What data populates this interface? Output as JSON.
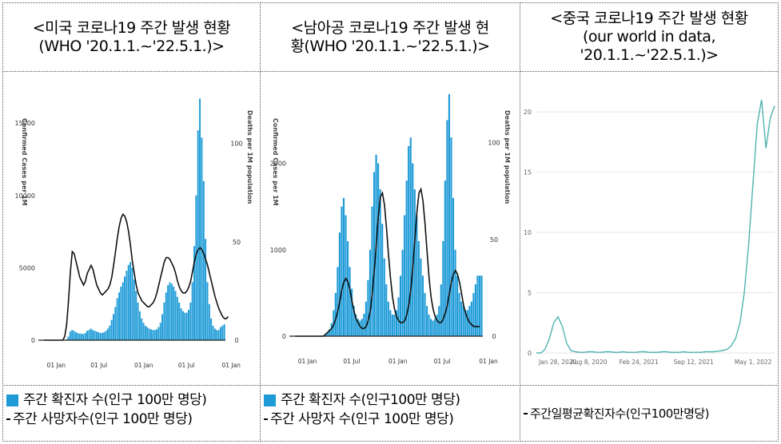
{
  "headers": [
    {
      "line1": "<미국 코로나19 주간 발생 현황",
      "line2": "(WHO '20.1.1.~'22.5.1.)>"
    },
    {
      "line1": "<남아공 코로나19 주간 발생 현",
      "line2": "황(WHO '20.1.1.~'22.5.1.)>"
    },
    {
      "line1": "<중국 코로나19 주간 발생 현황",
      "line2": "(our world in data, '20.1.1.~'22.5.1.)>"
    }
  ],
  "legends": {
    "usa": {
      "bar": "주간 확진자 수(인구 100만 명당)",
      "line": "주간 사망자수(인구 100만 명당)"
    },
    "rsa": {
      "bar": "주간 확진자 수(인구100만 명당)",
      "line": "주간 사망자 수(인구 100만 명당)"
    },
    "china": {
      "line": "주간일평균확진자수(인구100만명당)"
    }
  },
  "colors": {
    "bar": "#1e9bd7",
    "line": "#111111",
    "china_line": "#4fb3b0"
  },
  "chart_data": [
    {
      "type": "bar",
      "title": "미국 코로나19 주간 발생 현황",
      "ylabel": "Confirmed Cases per 1M",
      "y2label": "Deaths per 1M population",
      "x_tick_labels": [
        "01 Jan",
        "01 Jul",
        "01 Jan",
        "01 Jul",
        "01 Jan"
      ],
      "y_ticks": [
        0,
        5000,
        10000,
        15000
      ],
      "y2_ticks": [
        0,
        50,
        100
      ],
      "ylim": [
        0,
        17000
      ],
      "y2lim": [
        0,
        125
      ],
      "series": [
        {
          "kind": "bar",
          "values": [
            0,
            0,
            0,
            0,
            0,
            0,
            0,
            0,
            0,
            0,
            0,
            10,
            50,
            250,
            600,
            700,
            650,
            550,
            500,
            450,
            450,
            420,
            500,
            650,
            700,
            800,
            700,
            650,
            600,
            550,
            500,
            500,
            550,
            650,
            800,
            1000,
            1400,
            1800,
            2300,
            2900,
            3300,
            3700,
            4000,
            4400,
            4800,
            5200,
            5400,
            5000,
            4200,
            3400,
            2600,
            2000,
            1500,
            1200,
            1000,
            900,
            800,
            750,
            700,
            700,
            750,
            900,
            1200,
            1800,
            2600,
            3300,
            3800,
            4000,
            3900,
            3700,
            3400,
            3000,
            2600,
            2200,
            2000,
            1900,
            1900,
            2100,
            2600,
            4000,
            6500,
            10000,
            14500,
            16700,
            14000,
            11000,
            7000,
            4000,
            2500,
            1500,
            1000,
            800,
            700,
            700,
            900,
            1000,
            1100
          ]
        },
        {
          "kind": "line",
          "values": [
            0,
            0,
            0,
            0,
            0,
            0,
            0,
            0,
            0,
            0,
            0,
            2,
            8,
            20,
            35,
            45,
            44,
            40,
            36,
            32,
            30,
            28,
            30,
            34,
            36,
            38,
            36,
            32,
            28,
            26,
            24,
            23,
            24,
            25,
            26,
            28,
            32,
            38,
            45,
            52,
            58,
            62,
            64,
            63,
            60,
            55,
            48,
            40,
            34,
            28,
            24,
            22,
            20,
            19,
            18,
            17,
            17,
            18,
            19,
            21,
            24,
            28,
            32,
            36,
            40,
            42,
            42,
            41,
            39,
            37,
            34,
            30,
            27,
            25,
            24,
            24,
            25,
            27,
            30,
            35,
            40,
            44,
            46,
            47,
            46,
            44,
            41,
            38,
            34,
            30,
            26,
            22,
            19,
            16,
            14,
            12,
            11,
            11,
            12
          ]
        }
      ]
    },
    {
      "type": "bar",
      "title": "남아공 코로나19 주간 발생 현황",
      "ylabel": "Confirmed Cases per 1M",
      "y2label": "Deaths per 1M population",
      "x_tick_labels": [
        "01 Jan",
        "01 Jul",
        "01 Jan",
        "01 Jul",
        "01 Jan"
      ],
      "y_ticks": [
        0,
        1000,
        2000
      ],
      "y2_ticks": [
        0,
        50,
        100
      ],
      "ylim": [
        0,
        2800
      ],
      "y2lim": [
        0,
        125
      ],
      "series": [
        {
          "kind": "bar",
          "values": [
            0,
            0,
            0,
            0,
            0,
            0,
            0,
            0,
            0,
            0,
            0,
            0,
            0,
            5,
            10,
            20,
            40,
            80,
            150,
            300,
            500,
            800,
            1200,
            1500,
            1600,
            1400,
            1100,
            800,
            550,
            350,
            250,
            200,
            180,
            200,
            260,
            400,
            650,
            1000,
            1500,
            1900,
            2100,
            2000,
            1700,
            1300,
            900,
            600,
            400,
            300,
            250,
            250,
            300,
            450,
            700,
            1000,
            1400,
            1800,
            2200,
            2300,
            2000,
            1700,
            1400,
            1100,
            900,
            700,
            500,
            350,
            250,
            200,
            180,
            200,
            250,
            350,
            600,
            1100,
            1800,
            2500,
            2800,
            2300,
            1600,
            1000,
            700,
            500,
            400,
            350,
            300,
            300,
            350,
            400,
            500,
            600,
            700,
            700,
            700
          ]
        },
        {
          "kind": "line",
          "values": [
            0,
            0,
            0,
            0,
            0,
            0,
            0,
            0,
            0,
            0,
            0,
            0,
            0,
            0,
            0,
            1,
            2,
            3,
            4,
            6,
            9,
            13,
            18,
            24,
            28,
            30,
            28,
            24,
            18,
            13,
            9,
            7,
            5,
            4,
            4,
            5,
            8,
            13,
            22,
            34,
            48,
            62,
            72,
            74,
            68,
            56,
            42,
            30,
            20,
            14,
            10,
            8,
            7,
            7,
            8,
            11,
            16,
            24,
            36,
            50,
            64,
            74,
            76,
            70,
            58,
            44,
            30,
            20,
            14,
            10,
            8,
            7,
            7,
            9,
            12,
            16,
            22,
            28,
            32,
            34,
            32,
            28,
            22,
            16,
            12,
            9,
            7,
            6,
            5,
            5,
            5,
            5
          ]
        }
      ]
    },
    {
      "type": "line",
      "title": "중국 코로나19 주간 발생 현황",
      "x_tick_labels": [
        "Jan 28, 2020",
        "Aug 8, 2020",
        "Feb 24, 2021",
        "Sep 12, 2021",
        "May 1, 2022"
      ],
      "y_ticks": [
        0,
        5,
        10,
        15,
        20
      ],
      "ylim": [
        0,
        21
      ],
      "series": [
        {
          "kind": "line",
          "values": [
            0,
            0,
            0.3,
            1.2,
            2.5,
            3.0,
            2.2,
            0.8,
            0.2,
            0.1,
            0.05,
            0.05,
            0.1,
            0.1,
            0.05,
            0.05,
            0.1,
            0.1,
            0.05,
            0.05,
            0.1,
            0.05,
            0.05,
            0.05,
            0.1,
            0.1,
            0.05,
            0.05,
            0.05,
            0.1,
            0.1,
            0.05,
            0.05,
            0.05,
            0.1,
            0.05,
            0.05,
            0.05,
            0.05,
            0.1,
            0.1,
            0.1,
            0.15,
            0.2,
            0.3,
            0.6,
            1.2,
            2.5,
            5.0,
            9.0,
            14.0,
            19.0,
            21.0,
            17.0,
            19.5,
            20.5
          ]
        }
      ]
    }
  ]
}
